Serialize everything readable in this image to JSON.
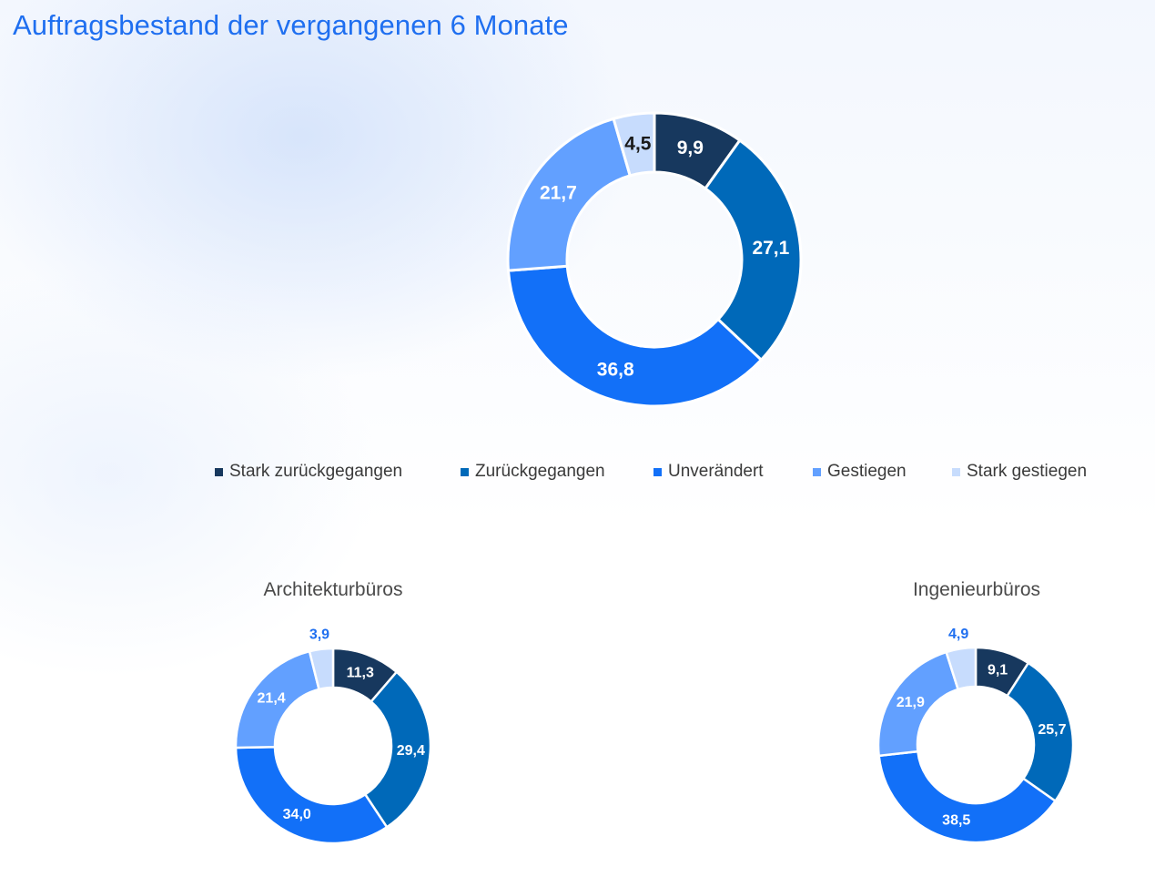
{
  "title": "Auftragsbestand der vergangenen 6 Monate",
  "legend": [
    "Stark zurückgegangen",
    "Zurückgegangen",
    "Unverändert",
    "Gestiegen",
    "Stark gestiegen"
  ],
  "colors": [
    "#17385e",
    "#0069b9",
    "#1270f8",
    "#62a0ff",
    "#c7dcfd"
  ],
  "chart_data": [
    {
      "type": "pie",
      "title": "",
      "categories": [
        "Stark zurückgegangen",
        "Zurückgegangen",
        "Unverändert",
        "Gestiegen",
        "Stark gestiegen"
      ],
      "values": [
        9.9,
        27.1,
        36.8,
        21.7,
        4.5
      ],
      "labels": [
        "9,9",
        "27,1",
        "36,8",
        "21,7",
        "4,5"
      ],
      "donut": true
    },
    {
      "type": "pie",
      "title": "Architekturbüros",
      "categories": [
        "Stark zurückgegangen",
        "Zurückgegangen",
        "Unverändert",
        "Gestiegen",
        "Stark gestiegen"
      ],
      "values": [
        11.3,
        29.4,
        34.0,
        21.4,
        3.9
      ],
      "labels": [
        "11,3",
        "29,4",
        "34,0",
        "21,4",
        "3,9"
      ],
      "donut": true
    },
    {
      "type": "pie",
      "title": "Ingenieurbüros",
      "categories": [
        "Stark zurückgegangen",
        "Zurückgegangen",
        "Unverändert",
        "Gestiegen",
        "Stark gestiegen"
      ],
      "values": [
        9.1,
        25.7,
        38.5,
        21.9,
        4.9
      ],
      "labels": [
        "9,1",
        "25,7",
        "38,5",
        "21,9",
        "4,9"
      ],
      "donut": true
    }
  ]
}
